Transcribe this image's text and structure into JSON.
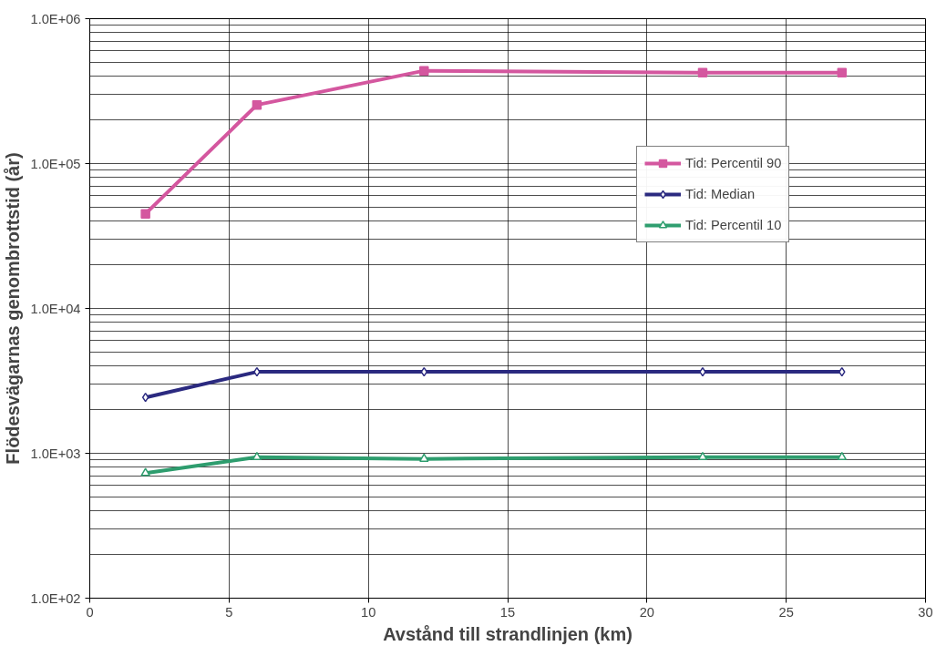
{
  "chart_data": {
    "type": "line",
    "xlabel": "Avstånd till strandlinjen (km)",
    "ylabel": "Flödesvägarnas genombrottstid (år)",
    "x": [
      2,
      6,
      12,
      22,
      27
    ],
    "series": [
      {
        "name": "Tid: Percentil 90",
        "color": "#d4579f",
        "marker": "square",
        "values": [
          45000,
          254000,
          437000,
          424000,
          424000
        ]
      },
      {
        "name": "Tid: Median",
        "color": "#2b2a80",
        "marker": "diamond",
        "values": [
          2430,
          3650,
          3650,
          3650,
          3650
        ]
      },
      {
        "name": "Tid: Percentil 10",
        "color": "#2e9d6e",
        "marker": "triangle",
        "values": [
          730,
          940,
          915,
          940,
          940
        ]
      }
    ],
    "log": "y",
    "xlim": [
      0,
      30
    ],
    "xticks": [
      0,
      5,
      10,
      15,
      20,
      25,
      30
    ],
    "ylim": [
      100,
      1000000
    ],
    "yticks": [
      {
        "value": 100,
        "label": "1.0E+02"
      },
      {
        "value": 1000,
        "label": "1.0E+03"
      },
      {
        "value": 10000,
        "label": "1.0E+04"
      },
      {
        "value": 100000,
        "label": "1.0E+05"
      },
      {
        "value": 1000000,
        "label": "1.0E+06"
      }
    ],
    "grid": true,
    "legend": "right"
  }
}
